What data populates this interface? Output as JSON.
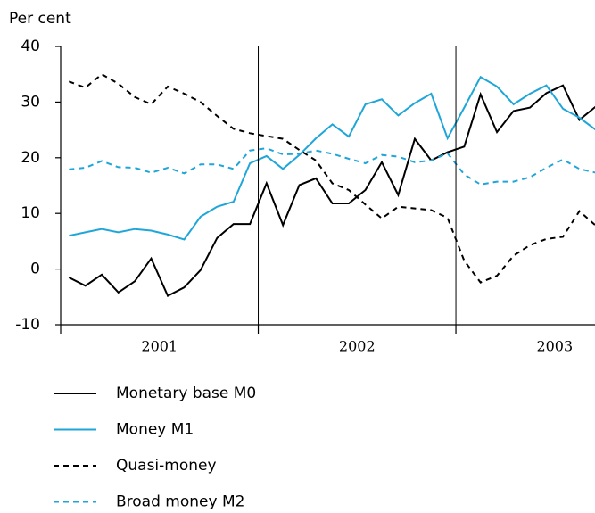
{
  "chart_data": {
    "type": "line",
    "y_label": "Per cent",
    "xlim": [
      2001,
      2003.704
    ],
    "xticks": [
      2001,
      2002,
      2003
    ],
    "ylim": [
      -10,
      40
    ],
    "yticks": [
      -10,
      0,
      10,
      20,
      30,
      40
    ],
    "grid": "x",
    "legend": "bottom",
    "x": [
      2001.042,
      2001.125,
      2001.208,
      2001.292,
      2001.375,
      2001.458,
      2001.542,
      2001.625,
      2001.708,
      2001.792,
      2001.875,
      2001.958,
      2002.042,
      2002.125,
      2002.208,
      2002.292,
      2002.375,
      2002.458,
      2002.542,
      2002.625,
      2002.708,
      2002.792,
      2002.875,
      2002.958,
      2003.042,
      2003.125,
      2003.208,
      2003.292,
      2003.375,
      2003.458,
      2003.542,
      2003.625,
      2003.708
    ],
    "series": [
      {
        "name": "Monetary base M0",
        "color": "#000000",
        "dash": false,
        "values": [
          -1.5,
          -3,
          -1,
          -4.2,
          -2.2,
          1.9,
          -4.8,
          -3.3,
          -0.2,
          5.6,
          8.1,
          8.1,
          15.4,
          7.9,
          15.1,
          16.3,
          11.8,
          11.8,
          14.2,
          19.2,
          13.3,
          23.4,
          19.5,
          21,
          22,
          31.4,
          24.6,
          28.4,
          29,
          31.6,
          33,
          26.8,
          29.2
        ]
      },
      {
        "name": "Money M1",
        "color": "#1fa6d9",
        "dash": false,
        "values": [
          6,
          6.6,
          7.2,
          6.6,
          7.2,
          6.9,
          6.2,
          5.3,
          9.4,
          11.2,
          12.1,
          19,
          20.3,
          18,
          20.5,
          23.5,
          26,
          23.8,
          29.6,
          30.5,
          27.6,
          29.8,
          31.5,
          23.5,
          29,
          34.5,
          32.8,
          29.6,
          31.5,
          33,
          28.8,
          27.2,
          25
        ]
      },
      {
        "name": "Quasi-money",
        "color": "#000000",
        "dash": true,
        "values": [
          33.7,
          32.6,
          35,
          33.3,
          30.9,
          29.6,
          32.8,
          31.5,
          30,
          27.5,
          25.2,
          24.4,
          23.9,
          23.4,
          21.4,
          19.5,
          15.4,
          14.2,
          11.6,
          9.1,
          11.2,
          10.9,
          10.6,
          9.2,
          1.5,
          -2.4,
          -1.2,
          2.4,
          4.3,
          5.4,
          5.8,
          10.4,
          7.8
        ]
      },
      {
        "name": "Broad money M2",
        "color": "#1fa6d9",
        "dash": true,
        "values": [
          17.9,
          18.2,
          19.4,
          18.3,
          18.2,
          17.3,
          18.2,
          17.2,
          18.8,
          18.8,
          18,
          21.3,
          21.7,
          20.6,
          20.7,
          21.3,
          20.7,
          19.8,
          19,
          20.5,
          20.2,
          19.2,
          19.5,
          20.8,
          17,
          15.2,
          15.7,
          15.7,
          16.5,
          18.2,
          19.7,
          18,
          17.3
        ]
      }
    ]
  }
}
